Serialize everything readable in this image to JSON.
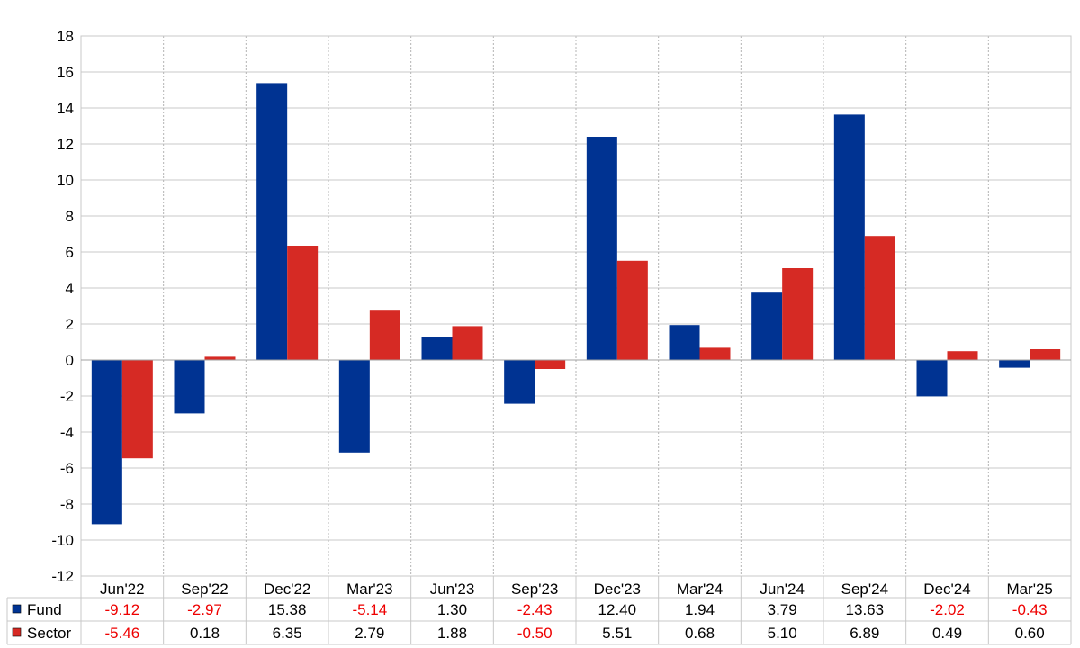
{
  "chart_data": {
    "type": "bar",
    "categories": [
      "Jun'22",
      "Sep'22",
      "Dec'22",
      "Mar'23",
      "Jun'23",
      "Sep'23",
      "Dec'23",
      "Mar'24",
      "Jun'24",
      "Sep'24",
      "Dec'24",
      "Mar'25"
    ],
    "series": [
      {
        "name": "Fund",
        "color": "#003392",
        "values": [
          -9.12,
          -2.97,
          15.38,
          -5.14,
          1.3,
          -2.43,
          12.4,
          1.94,
          3.79,
          13.63,
          -2.02,
          -0.43
        ],
        "labels": [
          "-9.12",
          "-2.97",
          "15.38",
          "-5.14",
          "1.30",
          "-2.43",
          "12.40",
          "1.94",
          "3.79",
          "13.63",
          "-2.02",
          "-0.43"
        ]
      },
      {
        "name": "Sector",
        "color": "#d62a24",
        "values": [
          -5.46,
          0.18,
          6.35,
          2.79,
          1.88,
          -0.5,
          5.51,
          0.68,
          5.1,
          6.89,
          0.49,
          0.6
        ],
        "labels": [
          "-5.46",
          "0.18",
          "6.35",
          "2.79",
          "1.88",
          "-0.50",
          "5.51",
          "0.68",
          "5.10",
          "6.89",
          "0.49",
          "0.60"
        ]
      }
    ],
    "ylim": [
      -12,
      18
    ],
    "yticks": [
      "-12",
      "-10",
      "-8",
      "-6",
      "-4",
      "-2",
      "0",
      "2",
      "4",
      "6",
      "8",
      "10",
      "12",
      "14",
      "16",
      "18"
    ],
    "grid": true,
    "legend": "bottom table",
    "negative_color": "#ee0000",
    "title": "",
    "xlabel": "",
    "ylabel": ""
  }
}
